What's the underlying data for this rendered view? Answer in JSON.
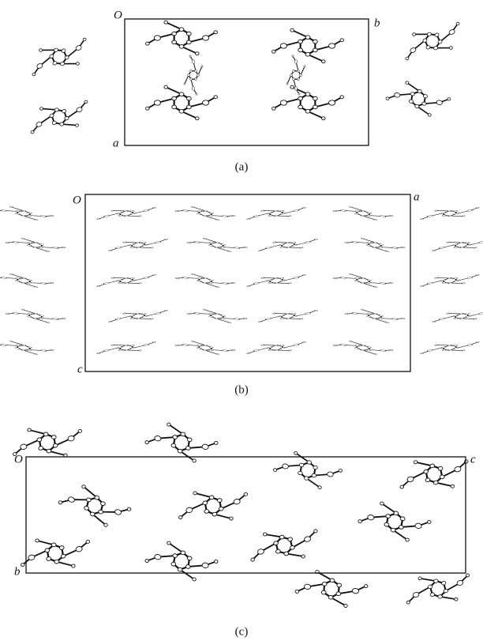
{
  "panels": [
    {
      "caption": "(a)",
      "labels": {
        "origin": "O",
        "right": "b",
        "bottom": "a"
      }
    },
    {
      "caption": "(b)",
      "labels": {
        "origin": "O",
        "right": "a",
        "bottom": "c"
      }
    },
    {
      "caption": "(c)",
      "labels": {
        "origin": "O",
        "right": "c",
        "bottom": "b"
      }
    }
  ]
}
